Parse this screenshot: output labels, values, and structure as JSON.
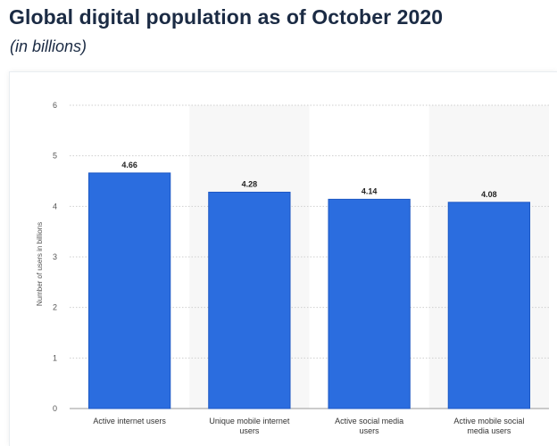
{
  "page": {
    "title": "Global digital population as of October 2020",
    "subtitle": "(in billions)"
  },
  "chart_data": {
    "type": "bar",
    "title": "Global digital population as of October 2020",
    "subtitle": "(in billions)",
    "xlabel": "",
    "ylabel": "Number of users in billions",
    "ylim": [
      0,
      6
    ],
    "yticks": [
      0,
      1,
      2,
      3,
      4,
      5,
      6
    ],
    "categories": [
      "Active internet users",
      "Unique mobile internet users",
      "Active social media users",
      "Active mobile social media users"
    ],
    "values": [
      4.66,
      4.28,
      4.14,
      4.08
    ],
    "value_labels": [
      "4.66",
      "4.28",
      "4.14",
      "4.08"
    ],
    "grid": true,
    "bar_color": "#2b6ddf",
    "bar_edge_color": "#1d58c4",
    "alt_band_color": "#f7f7f7",
    "grid_color": "#cfcfcf"
  }
}
